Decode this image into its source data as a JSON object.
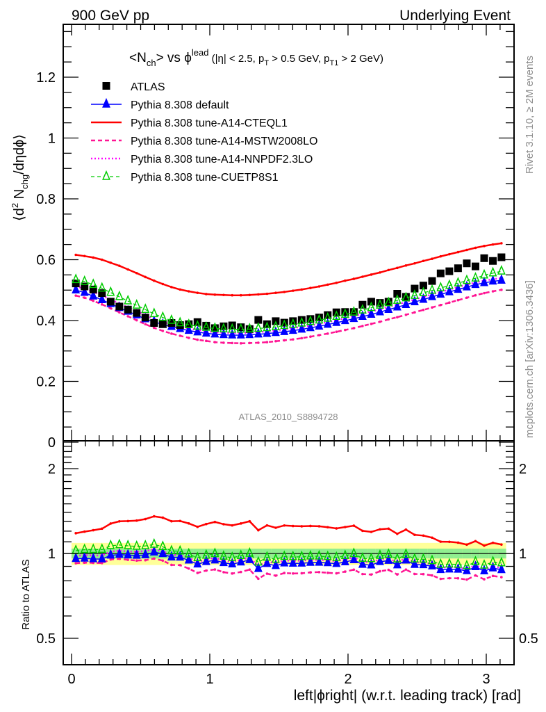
{
  "header": {
    "left": "900 GeV pp",
    "right": "Underlying Event"
  },
  "side_labels": {
    "rivet": "Rivet 3.1.10, ≥ 2M events",
    "mcplots": "mcplots.cern.ch [arXiv:1306.3436]"
  },
  "chart_data": [
    {
      "type": "scatter",
      "panel": "main",
      "title": "<N_ch> vs φ^lead (|η| < 2.5, p_T > 0.5 GeV, p_T1 > 2 GeV)",
      "title_parts": {
        "main": "<N",
        "sub1": "ch",
        "mid": "> vs ϕ",
        "sup": "lead",
        "cuts_a": " (|η| < 2.5, p",
        "sub2": "T",
        "cuts_b": " > 0.5 GeV, p",
        "sub3": "T1",
        "cuts_c": " > 2 GeV)"
      },
      "ylabel": "⟨d² N_chg/dηdϕ⟩",
      "ylabel_parts": {
        "a": "⟨d",
        "sup": "2",
        "b": " N",
        "sub": "chg",
        "c": "/dηdϕ⟩"
      },
      "xlabel": "",
      "ylim": [
        0,
        1.37
      ],
      "xlim": [
        -0.06,
        3.2
      ],
      "yticks": [
        0,
        0.2,
        0.4,
        0.6,
        0.8,
        1,
        1.2
      ],
      "ytick_labels": [
        "0",
        "0.2",
        "0.4",
        "0.6",
        "0.8",
        "1",
        "1.2"
      ],
      "watermark": "ATLAS_2010_S8894728",
      "legend_position": "top-left",
      "legend": [
        {
          "label": "ATLAS",
          "style": "data"
        },
        {
          "label": "Pythia 8.308 default",
          "style": "blue-solid-triangle"
        },
        {
          "label": "Pythia 8.308 tune-A14-CTEQL1",
          "style": "red-solid"
        },
        {
          "label": "Pythia 8.308 tune-A14-MSTW2008LO",
          "style": "magenta-dashed"
        },
        {
          "label": "Pythia 8.308 tune-A14-NNPDF2.3LO",
          "style": "magenta-dotted"
        },
        {
          "label": "Pythia 8.308 tune-CUETP8S1",
          "style": "green-dashed-open-triangle"
        }
      ],
      "x": [
        0.031,
        0.094,
        0.157,
        0.22,
        0.283,
        0.346,
        0.408,
        0.471,
        0.534,
        0.597,
        0.66,
        0.723,
        0.785,
        0.848,
        0.911,
        0.974,
        1.037,
        1.1,
        1.162,
        1.225,
        1.288,
        1.351,
        1.414,
        1.477,
        1.539,
        1.602,
        1.665,
        1.728,
        1.791,
        1.853,
        1.916,
        1.979,
        2.042,
        2.105,
        2.168,
        2.231,
        2.293,
        2.356,
        2.419,
        2.482,
        2.545,
        2.608,
        2.67,
        2.733,
        2.796,
        2.859,
        2.922,
        2.985,
        3.048,
        3.11
      ],
      "series": [
        {
          "name": "ATLAS",
          "color": "#000000",
          "values": [
            0.522,
            0.512,
            0.502,
            0.49,
            0.462,
            0.446,
            0.436,
            0.425,
            0.41,
            0.392,
            0.388,
            0.392,
            0.385,
            0.388,
            0.395,
            0.383,
            0.375,
            0.381,
            0.384,
            0.378,
            0.372,
            0.402,
            0.388,
            0.398,
            0.393,
            0.398,
            0.402,
            0.405,
            0.41,
            0.418,
            0.427,
            0.428,
            0.428,
            0.452,
            0.462,
            0.458,
            0.462,
            0.488,
            0.478,
            0.505,
            0.515,
            0.53,
            0.555,
            0.562,
            0.572,
            0.588,
            0.578,
            0.605,
            0.596,
            0.608
          ]
        },
        {
          "name": "Pythia 8.308 default",
          "color": "#0000ff",
          "values": [
            0.5,
            0.492,
            0.48,
            0.468,
            0.455,
            0.442,
            0.43,
            0.418,
            0.405,
            0.396,
            0.387,
            0.38,
            0.373,
            0.367,
            0.362,
            0.358,
            0.355,
            0.353,
            0.352,
            0.352,
            0.353,
            0.355,
            0.357,
            0.36,
            0.363,
            0.367,
            0.371,
            0.376,
            0.381,
            0.387,
            0.393,
            0.399,
            0.406,
            0.413,
            0.42,
            0.428,
            0.436,
            0.444,
            0.452,
            0.461,
            0.469,
            0.478,
            0.486,
            0.494,
            0.502,
            0.51,
            0.518,
            0.524,
            0.529,
            0.532
          ]
        },
        {
          "name": "Pythia 8.308 tune-A14-CTEQL1",
          "color": "#ff0000",
          "values": [
            0.616,
            0.612,
            0.607,
            0.6,
            0.59,
            0.58,
            0.568,
            0.556,
            0.543,
            0.531,
            0.52,
            0.51,
            0.502,
            0.496,
            0.491,
            0.487,
            0.485,
            0.484,
            0.483,
            0.483,
            0.484,
            0.486,
            0.488,
            0.491,
            0.494,
            0.498,
            0.502,
            0.507,
            0.512,
            0.518,
            0.524,
            0.531,
            0.537,
            0.544,
            0.551,
            0.558,
            0.566,
            0.573,
            0.581,
            0.588,
            0.596,
            0.603,
            0.611,
            0.618,
            0.625,
            0.632,
            0.639,
            0.645,
            0.65,
            0.654
          ]
        },
        {
          "name": "Pythia 8.308 tune-A14-MSTW2008LO",
          "color": "#ff1493",
          "values": [
            0.482,
            0.475,
            0.465,
            0.453,
            0.44,
            0.427,
            0.414,
            0.401,
            0.388,
            0.376,
            0.366,
            0.357,
            0.35,
            0.343,
            0.337,
            0.333,
            0.329,
            0.327,
            0.326,
            0.325,
            0.326,
            0.327,
            0.329,
            0.332,
            0.335,
            0.338,
            0.342,
            0.347,
            0.352,
            0.357,
            0.363,
            0.369,
            0.375,
            0.382,
            0.389,
            0.396,
            0.404,
            0.411,
            0.419,
            0.427,
            0.435,
            0.443,
            0.451,
            0.459,
            0.467,
            0.475,
            0.483,
            0.49,
            0.496,
            0.501
          ]
        },
        {
          "name": "Pythia 8.308 tune-A14-NNPDF2.3LO",
          "color": "#ff00ff",
          "values": [
            0.512,
            0.505,
            0.494,
            0.482,
            0.469,
            0.456,
            0.443,
            0.431,
            0.418,
            0.406,
            0.395,
            0.387,
            0.38,
            0.374,
            0.369,
            0.365,
            0.362,
            0.36,
            0.359,
            0.359,
            0.36,
            0.362,
            0.364,
            0.367,
            0.371,
            0.375,
            0.379,
            0.384,
            0.389,
            0.395,
            0.401,
            0.408,
            0.415,
            0.422,
            0.43,
            0.437,
            0.445,
            0.453,
            0.461,
            0.469,
            0.478,
            0.486,
            0.494,
            0.502,
            0.51,
            0.518,
            0.525,
            0.531,
            0.536,
            0.54
          ]
        },
        {
          "name": "Pythia 8.308 tune-CUETP8S1",
          "color": "#00cc00",
          "values": [
            0.534,
            0.528,
            0.518,
            0.506,
            0.492,
            0.478,
            0.464,
            0.45,
            0.436,
            0.422,
            0.41,
            0.4,
            0.392,
            0.386,
            0.381,
            0.377,
            0.374,
            0.372,
            0.371,
            0.371,
            0.372,
            0.374,
            0.376,
            0.379,
            0.383,
            0.387,
            0.391,
            0.396,
            0.401,
            0.407,
            0.413,
            0.42,
            0.427,
            0.434,
            0.442,
            0.45,
            0.458,
            0.466,
            0.474,
            0.482,
            0.491,
            0.499,
            0.507,
            0.515,
            0.523,
            0.531,
            0.539,
            0.549,
            0.556,
            0.562
          ]
        }
      ]
    },
    {
      "type": "line",
      "panel": "ratio",
      "ylabel": "Ratio to ATLAS",
      "xlabel": "left|ϕright| (w.r.t. leading track) [rad]",
      "yscale": "log",
      "ylim": [
        0.4,
        2.5
      ],
      "xlim": [
        -0.06,
        3.2
      ],
      "yticks": [
        0.5,
        1,
        2
      ],
      "ytick_labels": [
        "0.5",
        "1",
        "2"
      ],
      "xticks": [
        0,
        1,
        2,
        3
      ],
      "xtick_labels": [
        "0",
        "1",
        "2",
        "3"
      ],
      "bands": {
        "stat": {
          "color": "#90ee90",
          "halfwidth": 0.04
        },
        "total": {
          "color": "#ffff99",
          "halfwidth": 0.09
        }
      }
    }
  ]
}
